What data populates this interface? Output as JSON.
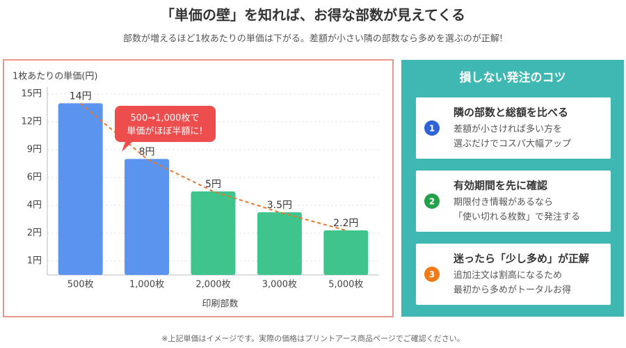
{
  "header": {
    "title": "「単価の壁」を知れば、お得な部数が見えてくる",
    "subtitle": "部数が増えるほど1枚あたりの単価は下がる。差額が小さい隣の部数なら多めを選ぶのが正解!"
  },
  "chart_data": {
    "type": "bar",
    "y_label": "1枚あたりの単価(円)",
    "x_label": "印刷部数",
    "categories": [
      "500枚",
      "1,000枚",
      "2,000枚",
      "3,000枚",
      "5,000枚"
    ],
    "values": [
      14,
      8,
      5,
      3.5,
      2.2
    ],
    "value_labels": [
      "14円",
      "8円",
      "5円",
      "3.5円",
      "2.2円"
    ],
    "colors": [
      "#5b94ee",
      "#5b94ee",
      "#3ec48c",
      "#3ec48c",
      "#3ec48c"
    ],
    "trend_color": "#e9772a",
    "ylim": [
      0,
      15
    ],
    "yticks": [
      {
        "value": 1,
        "label": "1円"
      },
      {
        "value": 2,
        "label": "2円"
      },
      {
        "value": 4,
        "label": "4円"
      },
      {
        "value": 6,
        "label": "6円"
      },
      {
        "value": 9,
        "label": "9円"
      },
      {
        "value": 12,
        "label": "12円"
      },
      {
        "value": 15,
        "label": "15円"
      }
    ],
    "grid": true,
    "annotation": [
      "500→1,000枚で",
      "単価がほぼ半額に!"
    ]
  },
  "tips": {
    "title": "損しない発注のコツ",
    "items": [
      {
        "number": "1",
        "heading": "隣の部数と総額を比べる",
        "lines": [
          "差額が小さければ多い方を",
          "選ぶだけでコスパ大幅アップ"
        ],
        "color": "#2e63d8"
      },
      {
        "number": "2",
        "heading": "有効期間を先に確認",
        "lines": [
          "期限付き情報があるなら",
          "「使い切れる枚数」で発注する"
        ],
        "color": "#24a04a"
      },
      {
        "number": "3",
        "heading": "迷ったら「少し多め」が正解",
        "lines": [
          "追加注文は割高になるため",
          "最初から多めがトータルお得"
        ],
        "color": "#f07a1a"
      }
    ]
  },
  "footnote": "※上記単価はイメージです。実際の価格はプリントアース商品ページでご確認ください。"
}
